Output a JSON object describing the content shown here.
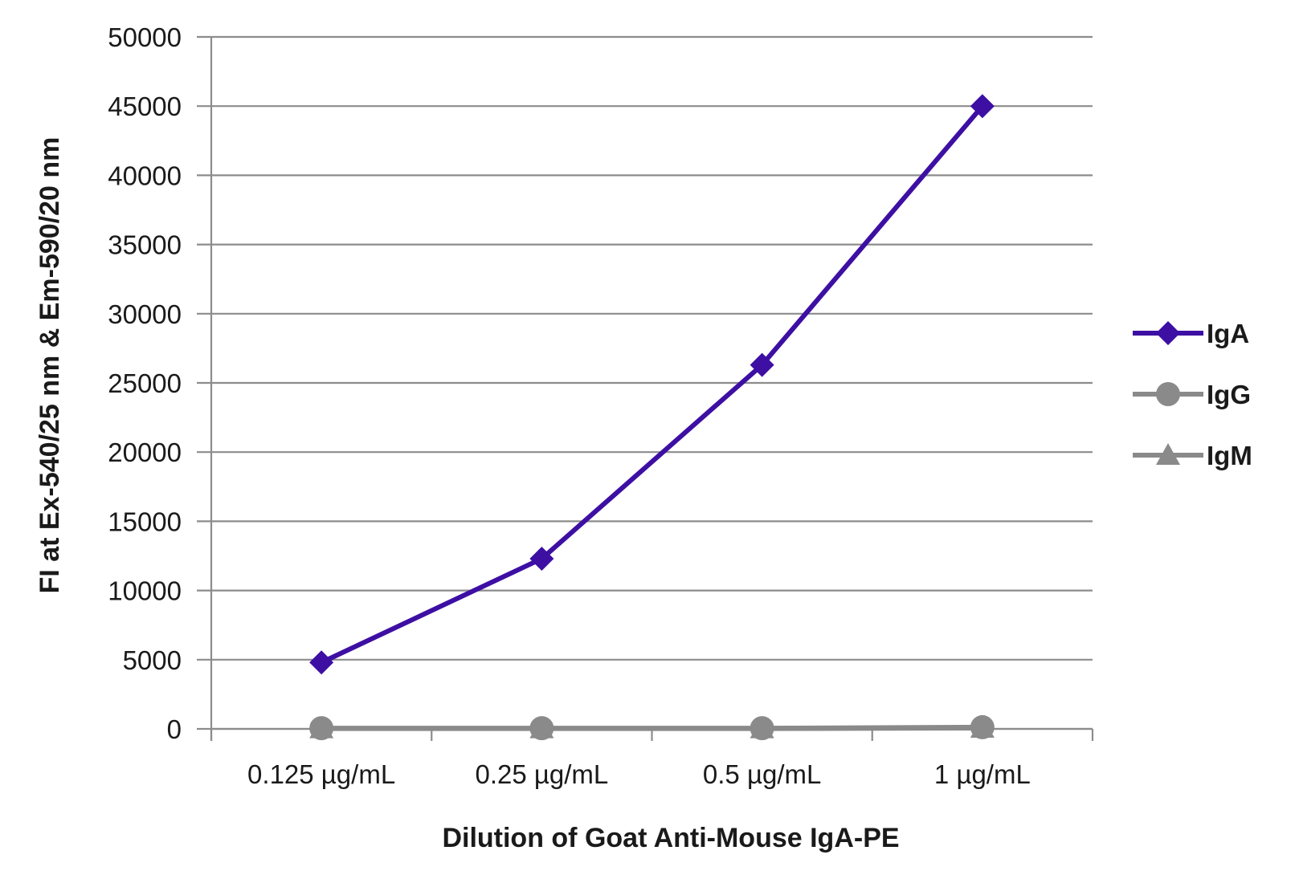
{
  "chart_data": {
    "type": "line",
    "title": "",
    "xlabel": "Dilution of Goat Anti-Mouse IgA-PE",
    "ylabel": "FI at Ex-540/25 nm & Em-590/20 nm",
    "categories": [
      "0.125 µg/mL",
      "0.25 µg/mL",
      "0.5 µg/mL",
      "1 µg/mL"
    ],
    "ylim": [
      0,
      50000
    ],
    "yticks": [
      0,
      5000,
      10000,
      15000,
      20000,
      25000,
      30000,
      35000,
      40000,
      45000,
      50000
    ],
    "grid": true,
    "legend_position": "right",
    "series": [
      {
        "name": "IgA",
        "values": [
          4800,
          12300,
          26300,
          45000
        ],
        "color": "#3d0fa3",
        "marker": "diamond"
      },
      {
        "name": "IgG",
        "values": [
          50,
          50,
          50,
          120
        ],
        "color": "#8a8a8a",
        "marker": "circle"
      },
      {
        "name": "IgM",
        "values": [
          20,
          20,
          20,
          60
        ],
        "color": "#8a8a8a",
        "marker": "triangle"
      }
    ]
  }
}
